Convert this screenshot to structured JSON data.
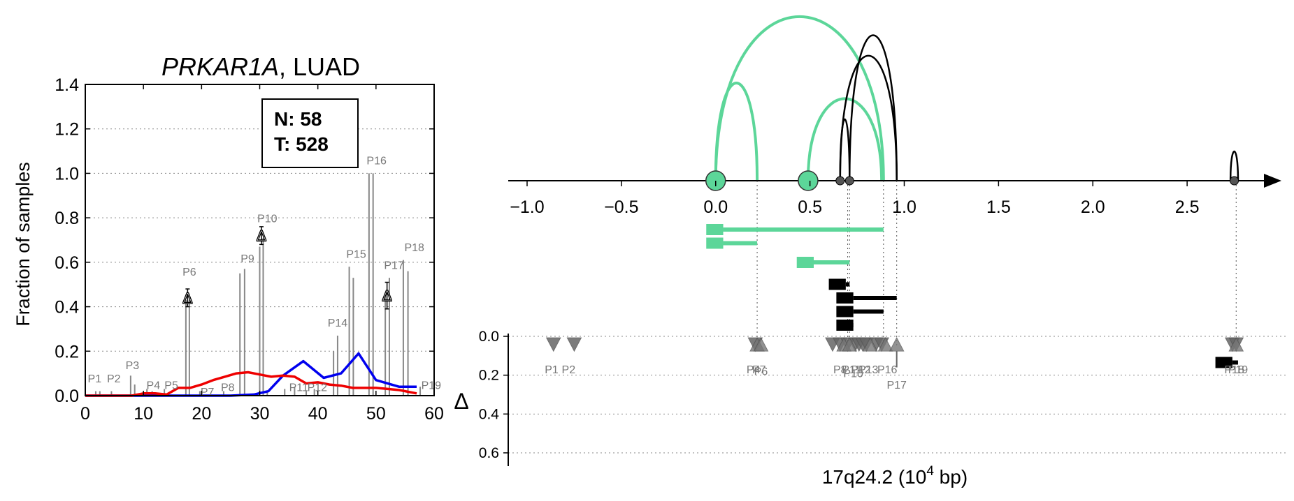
{
  "chart_data": [
    {
      "type": "bar",
      "title_gene": "PRKAR1A",
      "title_rest": ", LUAD",
      "xlabel": "",
      "ylabel": "Fraction of samples",
      "xlim": [
        0,
        60
      ],
      "ylim": [
        0,
        1.4
      ],
      "xticks": [
        "0",
        "10",
        "20",
        "30",
        "40",
        "50",
        "60"
      ],
      "yticks": [
        "0.0",
        "0.2",
        "0.4",
        "0.6",
        "0.8",
        "1.0",
        "1.2",
        "1.4"
      ],
      "grid": "horizontal dotted",
      "legend": {
        "position": "top-right",
        "lines": [
          "N: 58",
          "T: 528"
        ]
      },
      "bars": [
        {
          "x": 1.8,
          "v": 0.02
        },
        {
          "x": 2.5,
          "v": 0.02
        },
        {
          "x": 4.5,
          "v": 0.02
        },
        {
          "x": 7.8,
          "v": 0.09
        },
        {
          "x": 8.5,
          "v": 0.05
        },
        {
          "x": 10.6,
          "v": 0.03
        },
        {
          "x": 11.5,
          "v": 0.02
        },
        {
          "x": 13.6,
          "v": 0.03
        },
        {
          "x": 17.3,
          "v": 0.43
        },
        {
          "x": 17.9,
          "v": 0.43
        },
        {
          "x": 19.7,
          "v": 0.02
        },
        {
          "x": 23.8,
          "v": 0.02
        },
        {
          "x": 26.6,
          "v": 0.55
        },
        {
          "x": 27.4,
          "v": 0.57
        },
        {
          "x": 30.0,
          "v": 0.67
        },
        {
          "x": 30.6,
          "v": 0.71
        },
        {
          "x": 31.3,
          "v": 0.02
        },
        {
          "x": 34.3,
          "v": 0.03
        },
        {
          "x": 36.0,
          "v": 0.04
        },
        {
          "x": 38.0,
          "v": 0.02
        },
        {
          "x": 39.4,
          "v": 0.03
        },
        {
          "x": 42.7,
          "v": 0.2
        },
        {
          "x": 43.4,
          "v": 0.27
        },
        {
          "x": 45.4,
          "v": 0.58
        },
        {
          "x": 46.1,
          "v": 0.53
        },
        {
          "x": 48.8,
          "v": 1.0
        },
        {
          "x": 49.5,
          "v": 1.0
        },
        {
          "x": 51.6,
          "v": 0.46
        },
        {
          "x": 52.3,
          "v": 0.53
        },
        {
          "x": 54.7,
          "v": 0.61
        },
        {
          "x": 55.5,
          "v": 0.56
        },
        {
          "x": 57.6,
          "v": 0.04
        }
      ],
      "peak_labels": [
        {
          "label": "P1",
          "x": 1.6,
          "y": 0.06
        },
        {
          "label": "P2",
          "x": 4.9,
          "y": 0.06
        },
        {
          "label": "P3",
          "x": 8.1,
          "y": 0.12
        },
        {
          "label": "P4",
          "x": 11.7,
          "y": 0.03
        },
        {
          "label": "P5",
          "x": 14.8,
          "y": 0.03
        },
        {
          "label": "P6",
          "x": 17.9,
          "y": 0.54
        },
        {
          "label": "P7",
          "x": 21.0,
          "y": 0.0
        },
        {
          "label": "P8",
          "x": 24.5,
          "y": 0.02
        },
        {
          "label": "P9",
          "x": 27.9,
          "y": 0.6
        },
        {
          "label": "P10",
          "x": 31.3,
          "y": 0.78
        },
        {
          "label": "P11",
          "x": 36.7,
          "y": 0.02
        },
        {
          "label": "P12",
          "x": 39.9,
          "y": 0.02
        },
        {
          "label": "P14",
          "x": 43.4,
          "y": 0.31
        },
        {
          "label": "P15",
          "x": 46.6,
          "y": 0.62
        },
        {
          "label": "P16",
          "x": 50.1,
          "y": 1.04
        },
        {
          "label": "P17",
          "x": 53.1,
          "y": 0.57
        },
        {
          "label": "P18",
          "x": 56.6,
          "y": 0.65
        },
        {
          "label": "P19",
          "x": 59.5,
          "y": 0.03
        }
      ],
      "delta_markers": [
        {
          "x": 17.6,
          "y": 0.44,
          "err": 0.04
        },
        {
          "x": 30.3,
          "y": 0.72,
          "err": 0.04
        },
        {
          "x": 51.9,
          "y": 0.45,
          "err": 0.06
        }
      ],
      "series": [
        {
          "name": "blue",
          "color": "#0000ee",
          "x": [
            0,
            5,
            10,
            15,
            20,
            25,
            29,
            31.5,
            34,
            37.5,
            41,
            44,
            47,
            50,
            54,
            57
          ],
          "y": [
            0,
            0,
            0,
            0,
            0,
            0,
            0.005,
            0.02,
            0.09,
            0.155,
            0.08,
            0.1,
            0.19,
            0.07,
            0.04,
            0.04
          ]
        },
        {
          "name": "red",
          "color": "#ee0000",
          "x": [
            0,
            4,
            8,
            10,
            12,
            14,
            16,
            18,
            20,
            22,
            24,
            26,
            28,
            30,
            32,
            34,
            36,
            38,
            40,
            42,
            44,
            46,
            48,
            50,
            52,
            54,
            56,
            57
          ],
          "y": [
            0,
            0,
            0,
            0.01,
            0.01,
            0.005,
            0.035,
            0.035,
            0.05,
            0.07,
            0.085,
            0.1,
            0.105,
            0.095,
            0.085,
            0.09,
            0.085,
            0.055,
            0.06,
            0.05,
            0.045,
            0.035,
            0.035,
            0.035,
            0.03,
            0.025,
            0.015,
            0.01
          ]
        }
      ]
    },
    {
      "type": "scatter",
      "xlabel_main": "17q24.2 (10",
      "xlabel_exp": "4",
      "xlabel_tail": " bp)",
      "ylabel": "Δ",
      "xlim": [
        -1.1,
        3.0
      ],
      "ylim": [
        0.7,
        0.0
      ],
      "xticks": [
        "−1.0",
        "−0.5",
        "0.0",
        "0.5",
        "1.0",
        "1.5",
        "2.0",
        "2.5"
      ],
      "xtick_values": [
        -1.0,
        -0.5,
        0.0,
        0.5,
        1.0,
        1.5,
        2.0,
        2.5
      ],
      "yticks": [
        "0.0",
        "0.2",
        "0.4",
        "0.6"
      ],
      "ytick_values": [
        0.0,
        0.2,
        0.4,
        0.6
      ],
      "colors": {
        "green": "#5cd699",
        "black": "#000000",
        "marker": "#666666"
      },
      "arcs": [
        {
          "x1": 0.0,
          "x2": 0.22,
          "h": 1.0,
          "color": "green"
        },
        {
          "x1": 0.0,
          "x2": 0.89,
          "h": 1.68,
          "color": "green"
        },
        {
          "x1": 0.49,
          "x2": 0.88,
          "h": 0.84,
          "color": "green"
        },
        {
          "x1": 0.66,
          "x2": 0.71,
          "h": 0.63,
          "color": "black"
        },
        {
          "x1": 0.66,
          "x2": 0.96,
          "h": 1.28,
          "color": "black"
        },
        {
          "x1": 0.71,
          "x2": 0.96,
          "h": 1.49,
          "color": "black"
        },
        {
          "x1": 2.73,
          "x2": 2.77,
          "h": 0.3,
          "color": "black"
        }
      ],
      "nodes": [
        {
          "x": 0.0,
          "color": "green",
          "big": true
        },
        {
          "x": 0.49,
          "color": "green",
          "big": true
        },
        {
          "x": 0.66,
          "color": "black",
          "big": false
        },
        {
          "x": 0.71,
          "color": "black",
          "big": false
        },
        {
          "x": 2.75,
          "color": "black",
          "big": false
        }
      ],
      "isoforms": [
        {
          "start": -0.05,
          "box_end": 0.04,
          "end": 0.89,
          "row": 0,
          "color": "green"
        },
        {
          "start": -0.05,
          "box_end": 0.04,
          "end": 0.22,
          "row": 1,
          "color": "green"
        },
        {
          "start": 0.43,
          "box_end": 0.52,
          "end": 0.71,
          "row": 2,
          "color": "green"
        },
        {
          "start": 0.6,
          "box_end": 0.69,
          "end": 0.71,
          "row": 3,
          "color": "black"
        },
        {
          "start": 0.64,
          "box_end": 0.73,
          "end": 0.96,
          "row": 4,
          "color": "black"
        },
        {
          "start": 0.64,
          "box_end": 0.73,
          "end": 0.89,
          "row": 5,
          "color": "black"
        },
        {
          "start": 0.64,
          "box_end": 0.73,
          "end": 0.71,
          "row": 6,
          "color": "black"
        },
        {
          "start": 2.65,
          "box_end": 2.74,
          "end": 2.77,
          "row": 7,
          "color": "black"
        }
      ],
      "vlines": [
        0.22,
        0.7,
        0.71,
        0.89,
        0.96,
        2.76
      ],
      "down_markers": [
        -0.86,
        -0.75,
        0.21,
        0.62,
        0.66,
        0.7,
        0.74,
        0.76,
        0.78,
        0.8,
        0.85,
        0.88,
        2.74,
        2.76
      ],
      "up_markers": [
        0.22,
        0.24,
        0.68,
        0.71,
        0.82,
        0.9,
        0.96,
        2.76
      ],
      "marker_labels": [
        {
          "label": "P1",
          "x": -0.87,
          "y": 0.19
        },
        {
          "label": "P2",
          "x": -0.78,
          "y": 0.19
        },
        {
          "label": "P4",
          "x": 0.2,
          "y": 0.19
        },
        {
          "label": "P7",
          "x": 0.23,
          "y": 0.19
        },
        {
          "label": "P6",
          "x": 0.24,
          "y": 0.2
        },
        {
          "label": "P8",
          "x": 0.66,
          "y": 0.19
        },
        {
          "label": "P11",
          "x": 0.72,
          "y": 0.19
        },
        {
          "label": "P12",
          "x": 0.77,
          "y": 0.19
        },
        {
          "label": "P13",
          "x": 0.81,
          "y": 0.19
        },
        {
          "label": "P16",
          "x": 0.91,
          "y": 0.19
        },
        {
          "label": "P10",
          "x": 0.73,
          "y": 0.21
        },
        {
          "label": "P17",
          "x": 0.96,
          "y": 0.27
        },
        {
          "label": "P18",
          "x": 2.75,
          "y": 0.19
        },
        {
          "label": "P19",
          "x": 2.77,
          "y": 0.19
        }
      ]
    }
  ]
}
